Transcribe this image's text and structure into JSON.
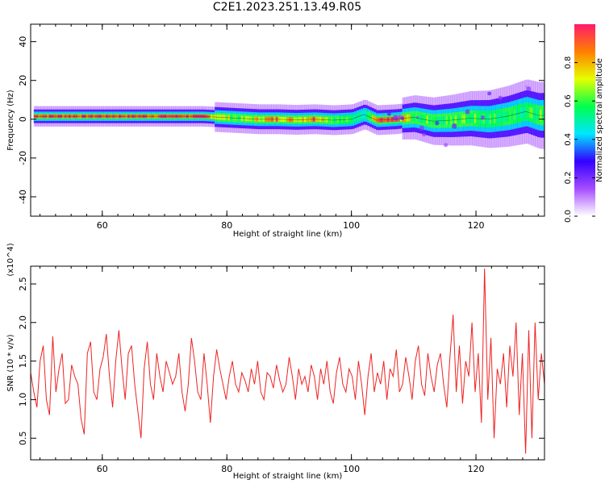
{
  "title": "C2E1.2023.251.13.49.R05",
  "chart_data": [
    {
      "type": "heatmap",
      "xlabel": "Height of straight line (km)",
      "ylabel": "Frequency (Hz)",
      "xlim": [
        48.5,
        131
      ],
      "ylim": [
        -50,
        49
      ],
      "xticks": [
        60,
        80,
        100,
        120
      ],
      "yticks": [
        -40,
        -20,
        0,
        20,
        40
      ],
      "colorbar": {
        "label": "Normalized spectral amplitude",
        "range": [
          0,
          1
        ],
        "ticks": [
          0.0,
          0.2,
          0.4,
          0.6,
          0.8
        ],
        "colormap": [
          "#ffffff",
          "#a64dff",
          "#3300ff",
          "#00e6ff",
          "#00ff4d",
          "#e6ff00",
          "#ff7f00",
          "#ff1a6b"
        ]
      },
      "ridge": [
        {
          "x": 49.0,
          "y": 1.5,
          "a": 0.95
        },
        {
          "x": 52.0,
          "y": 1.5,
          "a": 0.95
        },
        {
          "x": 55.0,
          "y": 1.5,
          "a": 0.95
        },
        {
          "x": 58.0,
          "y": 1.5,
          "a": 0.95
        },
        {
          "x": 61.0,
          "y": 1.5,
          "a": 0.95
        },
        {
          "x": 64.0,
          "y": 1.5,
          "a": 0.95
        },
        {
          "x": 67.0,
          "y": 1.5,
          "a": 0.93
        },
        {
          "x": 70.0,
          "y": 1.5,
          "a": 0.95
        },
        {
          "x": 73.0,
          "y": 1.5,
          "a": 0.95
        },
        {
          "x": 76.0,
          "y": 1.5,
          "a": 0.95
        },
        {
          "x": 79.0,
          "y": 1.0,
          "a": 0.7
        },
        {
          "x": 82.0,
          "y": 0.5,
          "a": 0.6
        },
        {
          "x": 85.0,
          "y": 0.0,
          "a": 0.75
        },
        {
          "x": 88.0,
          "y": 0.0,
          "a": 0.85
        },
        {
          "x": 91.0,
          "y": -0.3,
          "a": 0.75
        },
        {
          "x": 94.0,
          "y": 0.0,
          "a": 0.9
        },
        {
          "x": 97.0,
          "y": -0.5,
          "a": 0.6
        },
        {
          "x": 100.0,
          "y": 0.0,
          "a": 0.55
        },
        {
          "x": 102.0,
          "y": 2.5,
          "a": 0.5
        },
        {
          "x": 104.0,
          "y": -0.5,
          "a": 0.9
        },
        {
          "x": 107.0,
          "y": 0.0,
          "a": 0.9
        },
        {
          "x": 110.0,
          "y": 1.0,
          "a": 0.6
        },
        {
          "x": 113.0,
          "y": -1.0,
          "a": 0.6
        },
        {
          "x": 116.0,
          "y": -0.5,
          "a": 0.6
        },
        {
          "x": 119.0,
          "y": 0.5,
          "a": 0.6
        },
        {
          "x": 122.0,
          "y": 0.0,
          "a": 0.55
        },
        {
          "x": 125.0,
          "y": 1.5,
          "a": 0.6
        },
        {
          "x": 128.0,
          "y": 4.0,
          "a": 0.55
        },
        {
          "x": 130.0,
          "y": 2.0,
          "a": 0.6
        }
      ]
    },
    {
      "type": "line",
      "xlabel": "Height of straight line (km)",
      "ylabel": "SNR (10 * v/v)",
      "y_multiplier": "(x10^4)",
      "xlim": [
        48.5,
        131
      ],
      "ylim": [
        0.22,
        2.73
      ],
      "xticks": [
        60,
        80,
        100,
        120
      ],
      "yticks": [
        0.5,
        1.0,
        1.5,
        2.0,
        2.5
      ],
      "ytick_labels": [
        "0.5",
        "1.0",
        "1.5",
        "2.0",
        "2.5"
      ],
      "series": [
        {
          "color": "#ee2222",
          "x_start": 48.5,
          "x_end": 131,
          "points": [
            1.35,
            1.1,
            0.9,
            1.5,
            1.7,
            1.0,
            0.8,
            1.82,
            1.1,
            1.4,
            1.6,
            0.95,
            1.0,
            1.45,
            1.3,
            1.2,
            0.75,
            0.55,
            1.6,
            1.75,
            1.1,
            1.0,
            1.4,
            1.55,
            1.85,
            1.3,
            0.9,
            1.5,
            1.9,
            1.4,
            1.0,
            1.6,
            1.7,
            1.2,
            0.85,
            0.5,
            1.4,
            1.75,
            1.2,
            1.0,
            1.6,
            1.3,
            1.1,
            1.5,
            1.35,
            1.2,
            1.3,
            1.6,
            1.1,
            0.85,
            1.2,
            1.8,
            1.5,
            1.1,
            1.0,
            1.6,
            1.2,
            0.7,
            1.3,
            1.65,
            1.4,
            1.2,
            1.0,
            1.3,
            1.5,
            1.2,
            1.1,
            1.35,
            1.25,
            1.1,
            1.4,
            1.2,
            1.5,
            1.1,
            1.0,
            1.35,
            1.3,
            1.15,
            1.45,
            1.25,
            1.1,
            1.2,
            1.55,
            1.3,
            1.0,
            1.4,
            1.2,
            1.3,
            1.1,
            1.45,
            1.3,
            1.0,
            1.4,
            1.2,
            1.5,
            1.1,
            0.95,
            1.35,
            1.55,
            1.2,
            1.1,
            1.4,
            1.3,
            1.0,
            1.5,
            1.2,
            0.8,
            1.3,
            1.6,
            1.1,
            1.35,
            1.2,
            1.5,
            1.0,
            1.4,
            1.3,
            1.65,
            1.1,
            1.2,
            1.55,
            1.3,
            1.0,
            1.5,
            1.7,
            1.2,
            1.05,
            1.6,
            1.3,
            1.1,
            1.45,
            1.6,
            1.2,
            0.9,
            1.55,
            2.1,
            1.1,
            1.7,
            0.95,
            1.5,
            1.3,
            2.0,
            1.1,
            1.6,
            0.7,
            2.7,
            1.0,
            1.8,
            0.5,
            1.4,
            1.2,
            1.6,
            0.9,
            1.7,
            1.3,
            2.0,
            0.8,
            1.6,
            0.3,
            1.9,
            0.5,
            2.0,
            1.0,
            1.6,
            1.2
          ]
        }
      ]
    }
  ]
}
